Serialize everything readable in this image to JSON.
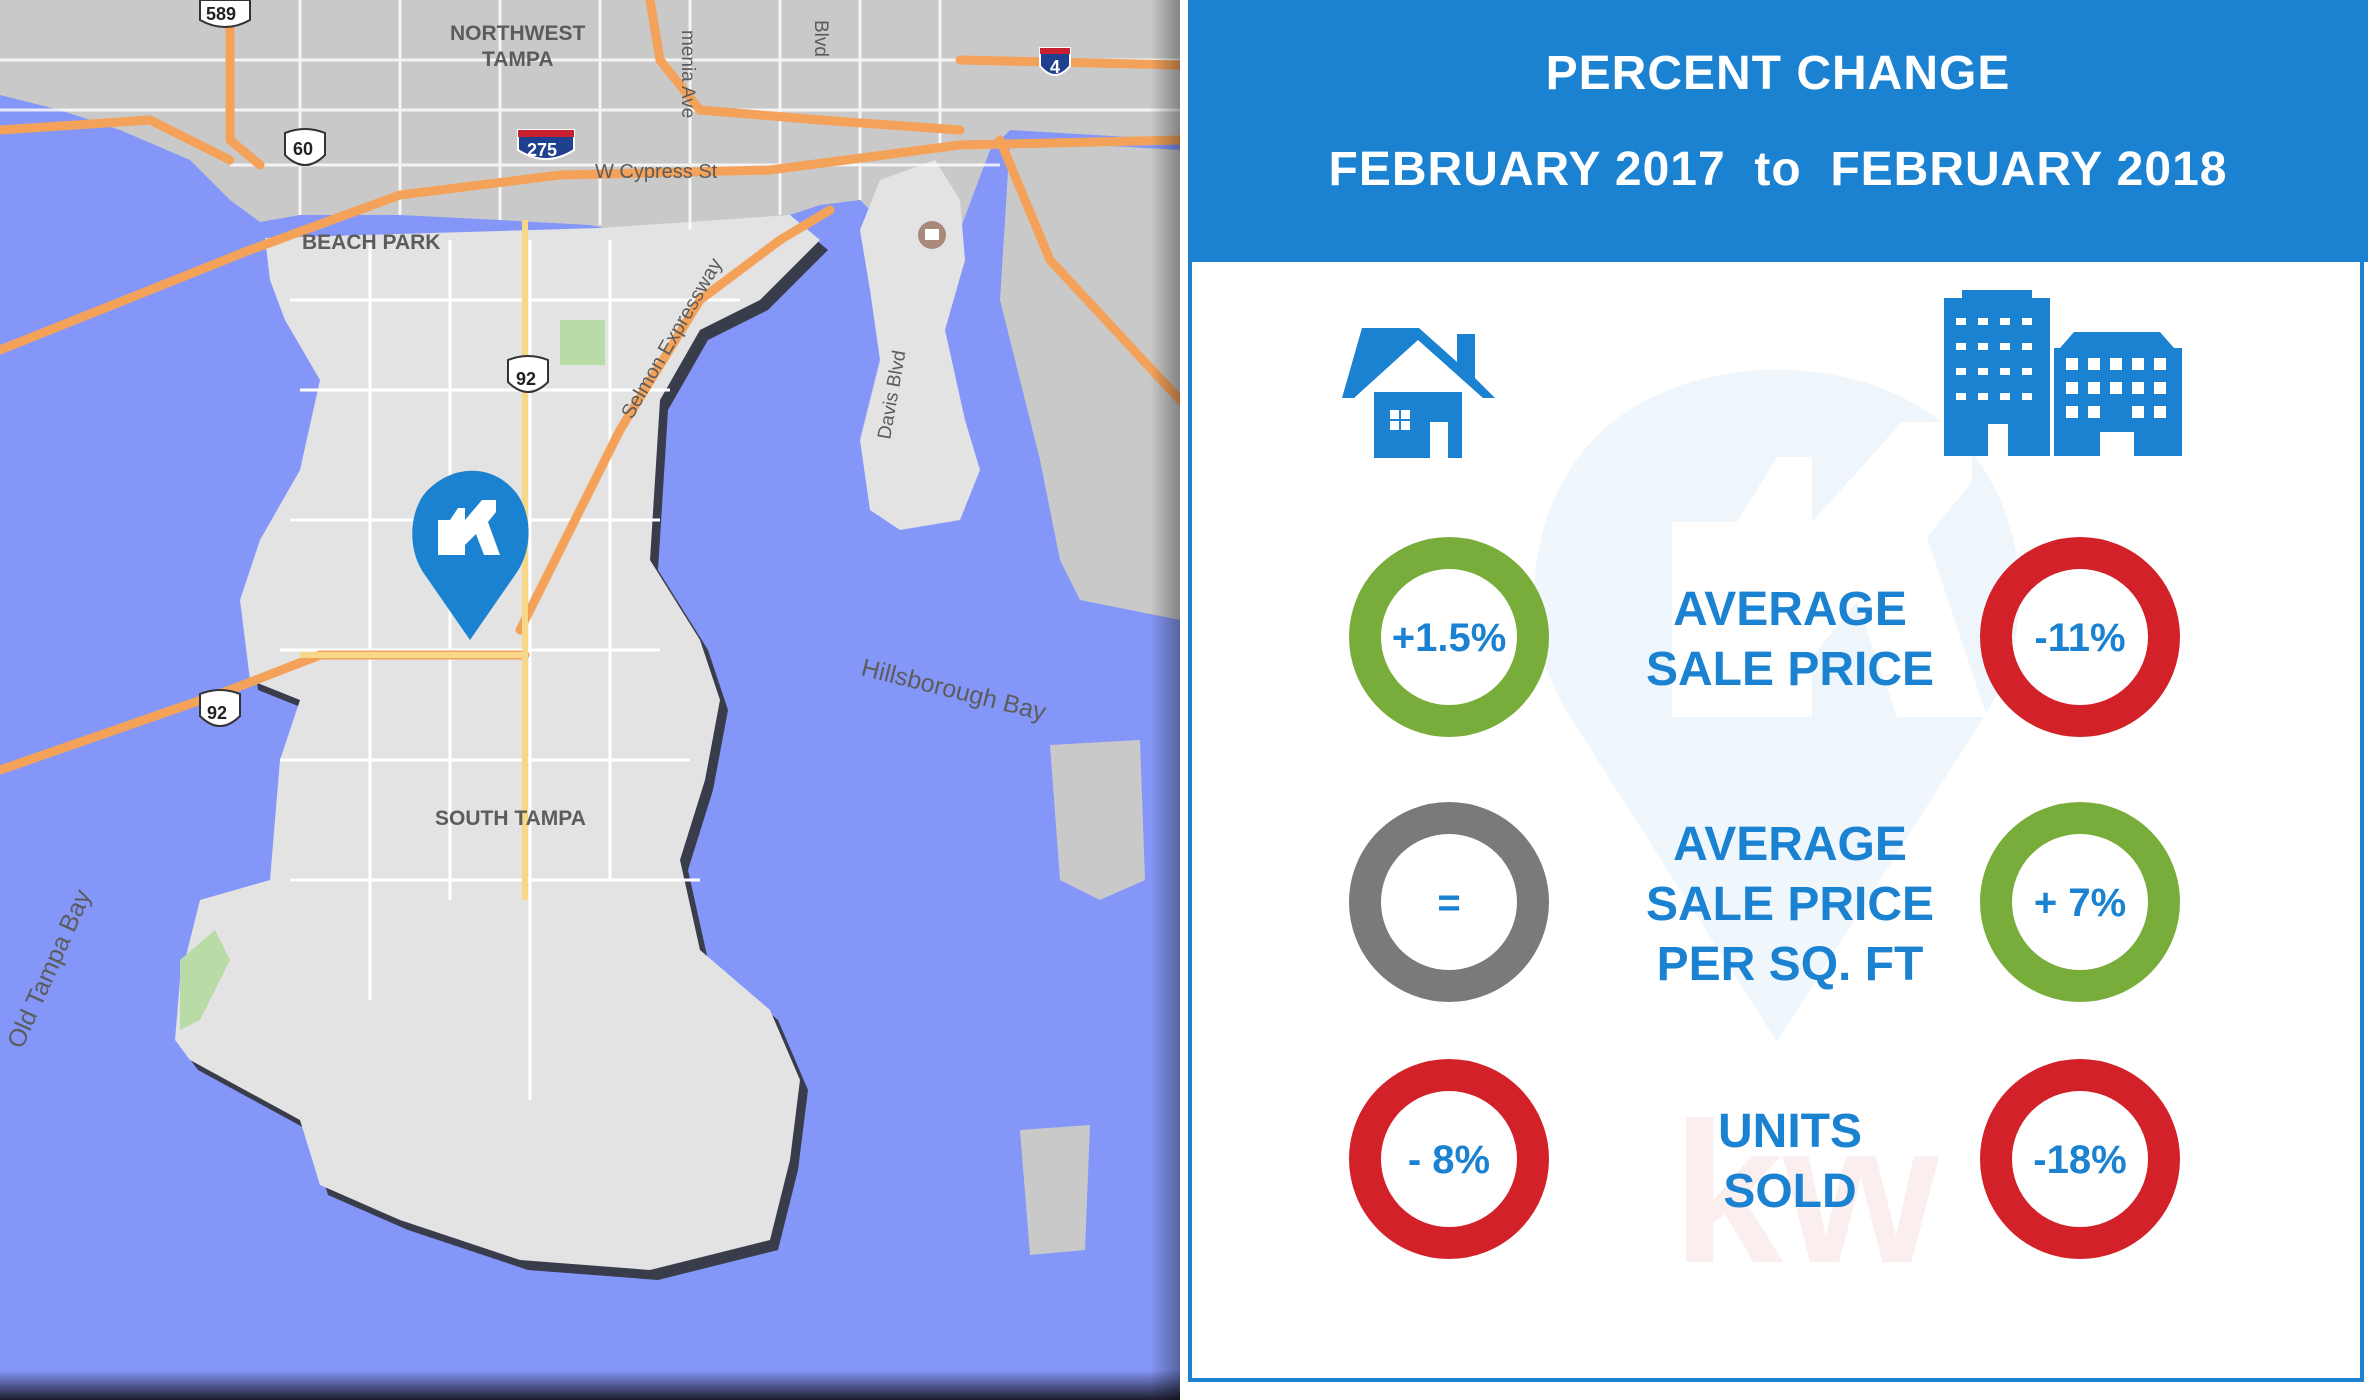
{
  "map": {
    "labels": {
      "northwest": "NORTHWEST",
      "tampa": "TAMPA",
      "menia_ave": "menia Ave",
      "blvd_top": "Blvd",
      "w_cypress": "W Cypress St",
      "beach_park": "BEACH PARK",
      "selmon": "Selmon Expressway",
      "davis": "Davis Blvd",
      "hillsborough_bay": "Hillsborough Bay",
      "south_tampa": "SOUTH TAMPA",
      "old_tampa_bay": "Old Tampa Bay"
    },
    "shields": {
      "us589": "589",
      "us60": "60",
      "i275": "275",
      "i4": "4",
      "us92_upper": "92",
      "us92_lower": "92"
    },
    "marker_icon": "kw-location-pin-icon",
    "colors": {
      "water": "#8497f8",
      "land": "#e3e3e3",
      "land_north": "#c9c9c9",
      "highway": "#f4a259",
      "road": "#ffffff",
      "marker": "#1a82d1"
    }
  },
  "panel": {
    "title": "PERCENT CHANGE",
    "subtitle": "FEBRUARY 2017  to  FEBRUARY 2018",
    "icons": {
      "single_family": "house-icon",
      "condo": "buildings-icon",
      "watermark": "kw-watermark"
    },
    "watermark_text": "kw",
    "metrics": [
      {
        "label_lines": [
          "AVERAGE",
          "SALE PRICE"
        ],
        "house_value": "+1.5%",
        "house_color": "#79ad3b",
        "condo_value": "-11%",
        "condo_color": "#d22129"
      },
      {
        "label_lines": [
          "AVERAGE",
          "SALE PRICE",
          "PER SQ. FT"
        ],
        "house_value": "=",
        "house_color": "#7a7a7a",
        "condo_value": "+ 7%",
        "condo_color": "#79ad3b"
      },
      {
        "label_lines": [
          "UNITS",
          "SOLD"
        ],
        "house_value": "- 8%",
        "house_color": "#d22129",
        "condo_value": "-18%",
        "condo_color": "#d22129"
      }
    ],
    "colors": {
      "accent": "#1a82d1",
      "up": "#79ad3b",
      "neutral": "#7a7a7a",
      "down": "#d22129"
    }
  }
}
